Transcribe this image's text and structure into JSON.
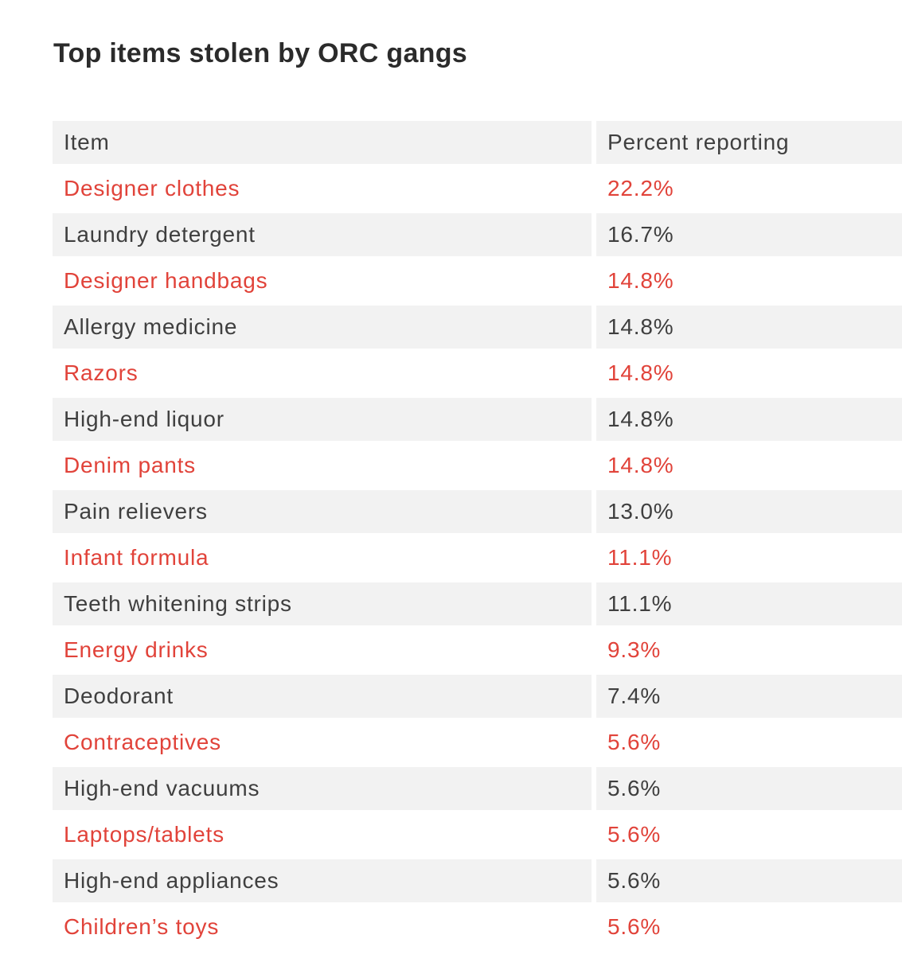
{
  "title": "Top items stolen by ORC gangs",
  "colors": {
    "background": "#ffffff",
    "title_color": "#2b2b2b",
    "text_dark": "#3f3f3f",
    "accent_red": "#e1433a",
    "row_shade": "#f2f2f2"
  },
  "table": {
    "columns": [
      "Item",
      "Percent reporting"
    ],
    "rows": [
      {
        "item": "Designer clothes",
        "percent": "22.2%",
        "highlighted": true
      },
      {
        "item": "Laundry detergent",
        "percent": "16.7%",
        "highlighted": false
      },
      {
        "item": "Designer handbags",
        "percent": "14.8%",
        "highlighted": true
      },
      {
        "item": "Allergy medicine",
        "percent": "14.8%",
        "highlighted": false
      },
      {
        "item": "Razors",
        "percent": "14.8%",
        "highlighted": true
      },
      {
        "item": "High-end liquor",
        "percent": "14.8%",
        "highlighted": false
      },
      {
        "item": "Denim pants",
        "percent": "14.8%",
        "highlighted": true
      },
      {
        "item": "Pain relievers",
        "percent": "13.0%",
        "highlighted": false
      },
      {
        "item": "Infant formula",
        "percent": "11.1%",
        "highlighted": true
      },
      {
        "item": "Teeth whitening strips",
        "percent": "11.1%",
        "highlighted": false
      },
      {
        "item": "Energy drinks",
        "percent": "9.3%",
        "highlighted": true
      },
      {
        "item": "Deodorant",
        "percent": "7.4%",
        "highlighted": false
      },
      {
        "item": "Contraceptives",
        "percent": "5.6%",
        "highlighted": true
      },
      {
        "item": "High-end vacuums",
        "percent": "5.6%",
        "highlighted": false
      },
      {
        "item": "Laptops/tablets",
        "percent": "5.6%",
        "highlighted": true
      },
      {
        "item": "High-end appliances",
        "percent": "5.6%",
        "highlighted": false
      },
      {
        "item": "Children’s toys",
        "percent": "5.6%",
        "highlighted": true
      }
    ]
  },
  "chart_data": {
    "type": "table",
    "title": "Top items stolen by ORC gangs",
    "columns": [
      "Item",
      "Percent reporting"
    ],
    "units": "percent",
    "rows": [
      [
        "Designer clothes",
        22.2
      ],
      [
        "Laundry detergent",
        16.7
      ],
      [
        "Designer handbags",
        14.8
      ],
      [
        "Allergy medicine",
        14.8
      ],
      [
        "Razors",
        14.8
      ],
      [
        "High-end liquor",
        14.8
      ],
      [
        "Denim pants",
        14.8
      ],
      [
        "Pain relievers",
        13.0
      ],
      [
        "Infant formula",
        11.1
      ],
      [
        "Teeth whitening strips",
        11.1
      ],
      [
        "Energy drinks",
        9.3
      ],
      [
        "Deodorant",
        7.4
      ],
      [
        "Contraceptives",
        5.6
      ],
      [
        "High-end vacuums",
        5.6
      ],
      [
        "Laptops/tablets",
        5.6
      ],
      [
        "High-end appliances",
        5.6
      ],
      [
        "Children’s toys",
        5.6
      ]
    ],
    "highlighted_rows": [
      0,
      2,
      4,
      6,
      8,
      10,
      12,
      14,
      16
    ],
    "layout": {
      "row_striping": "alternating shaded/white",
      "highlight_style": "red text on white rows"
    }
  }
}
